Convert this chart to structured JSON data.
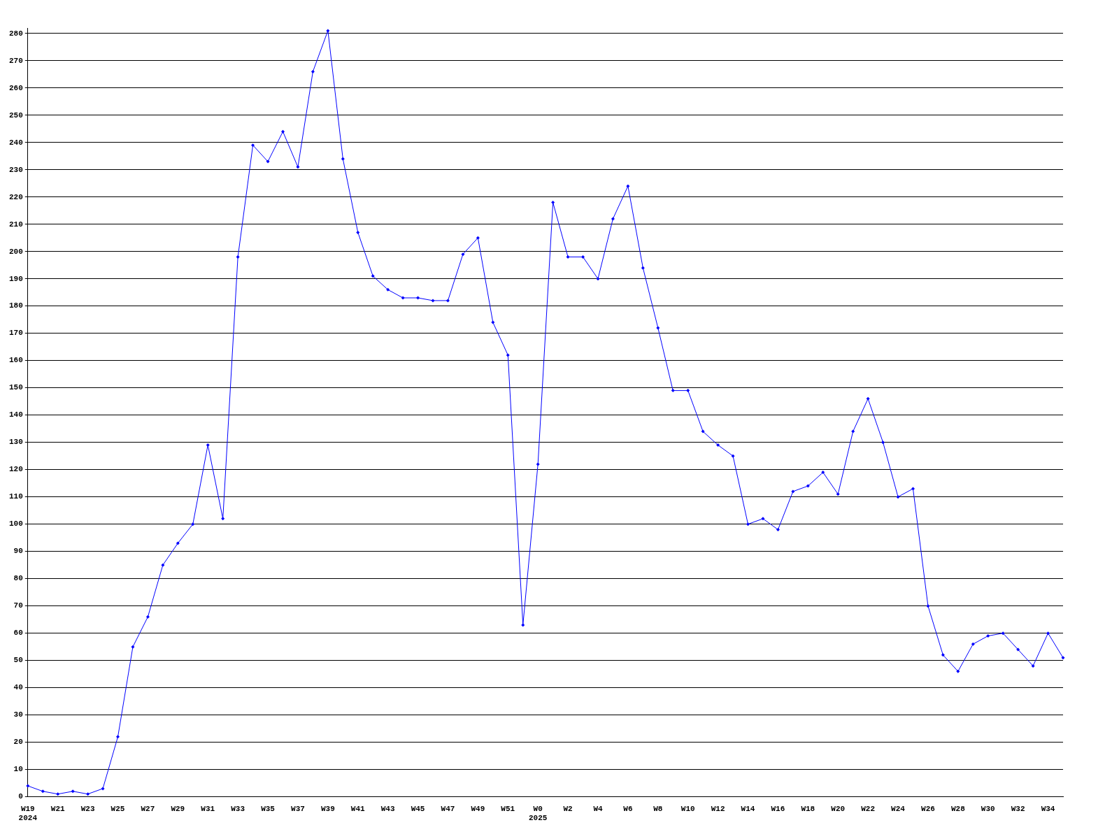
{
  "chart_data": {
    "type": "line",
    "categories": [
      "W19\n2024",
      null,
      "W21",
      null,
      "W23",
      null,
      "W25",
      null,
      "W27",
      null,
      "W29",
      null,
      "W31",
      null,
      "W33",
      null,
      "W35",
      null,
      "W37",
      null,
      "W39",
      null,
      "W41",
      null,
      "W43",
      null,
      "W45",
      null,
      "W47",
      null,
      "W49",
      null,
      "W51",
      null,
      "W0\n2025",
      null,
      "W2",
      null,
      "W4",
      null,
      "W6",
      null,
      "W8",
      null,
      "W10",
      null,
      "W12",
      null,
      "W14",
      null,
      "W16",
      null,
      "W18",
      null,
      "W20",
      null,
      "W22",
      null,
      "W24",
      null,
      "W26",
      null,
      "W28",
      null,
      "W30",
      null,
      "W32",
      null,
      "W34",
      null
    ],
    "series": [
      {
        "color": "#0000ff",
        "values": [
          4,
          2,
          1,
          2,
          1,
          3,
          22,
          55,
          66,
          85,
          93,
          100,
          129,
          102,
          198,
          239,
          233,
          244,
          231,
          266,
          281,
          234,
          207,
          191,
          186,
          183,
          183,
          182,
          182,
          199,
          205,
          174,
          162,
          63,
          122,
          218,
          198,
          198,
          190,
          212,
          224,
          194,
          172,
          149,
          149,
          134,
          129,
          125,
          100,
          102,
          98,
          112,
          114,
          119,
          111,
          134,
          146,
          130,
          110,
          113,
          70,
          52,
          46,
          56,
          59,
          60,
          54,
          48,
          60,
          51
        ]
      }
    ],
    "ylim": [
      0,
      282
    ],
    "yticks": [
      0,
      10,
      20,
      30,
      40,
      50,
      60,
      70,
      80,
      90,
      100,
      110,
      120,
      130,
      140,
      150,
      160,
      170,
      180,
      190,
      200,
      210,
      220,
      230,
      240,
      250,
      260,
      270,
      280
    ],
    "grid": "y",
    "legend": false,
    "marker": "diamond",
    "line_style": "solid"
  }
}
